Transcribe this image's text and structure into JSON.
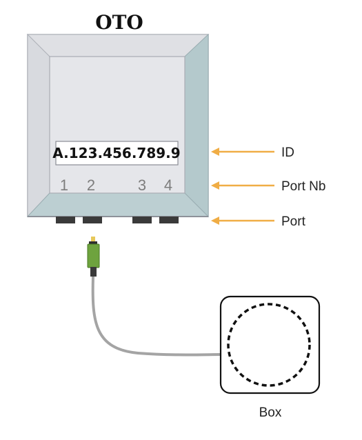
{
  "device": {
    "title": "OTO",
    "id_value": "A.123.456.789.9",
    "port_numbers": [
      "1",
      "2",
      "3",
      "4"
    ]
  },
  "callouts": {
    "id": "ID",
    "port_nb": "Port Nb",
    "port": "Port"
  },
  "box": {
    "label": "Box"
  },
  "colors": {
    "device_face": "#e5e6ea",
    "device_bevel": "#d1d3d9",
    "device_side": "#b4c9cc",
    "arrow": "#f0ad45",
    "connector": "#6ea33e",
    "cable": "#a4a4a4",
    "port": "#3a3a3a"
  }
}
